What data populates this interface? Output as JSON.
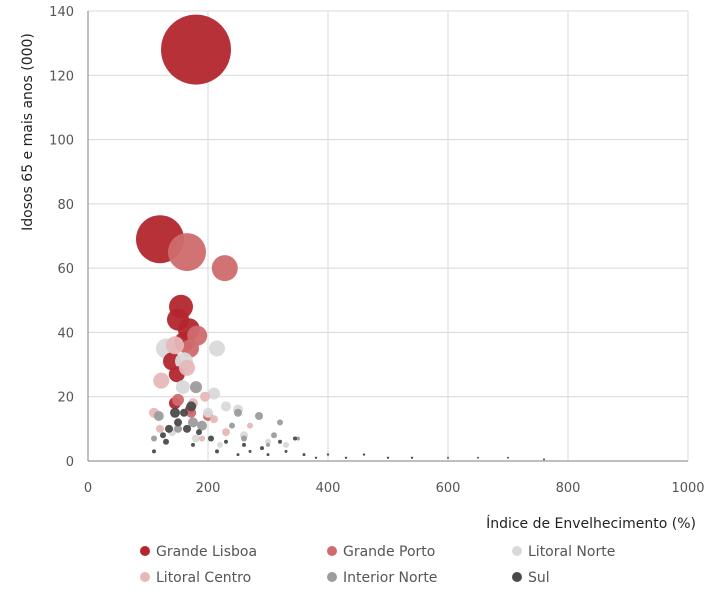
{
  "chart_data": {
    "type": "scatter",
    "subtype": "bubble",
    "xlabel": "Índice de Envelhecimento (%)",
    "ylabel": "Idosos  65 e mais  anos (000)",
    "xlim": [
      0,
      1000
    ],
    "ylim": [
      0,
      140
    ],
    "x_ticks": [
      0,
      200,
      400,
      600,
      800,
      1000
    ],
    "y_ticks": [
      0,
      20,
      40,
      60,
      80,
      100,
      120,
      140
    ],
    "grid": true,
    "legend_position": "bottom",
    "series": [
      {
        "name": "Grande Lisboa",
        "color": "#b3262e",
        "points": [
          {
            "x": 180,
            "y": 128,
            "r": 35
          },
          {
            "x": 120,
            "y": 69,
            "r": 24
          },
          {
            "x": 155,
            "y": 48,
            "r": 12
          },
          {
            "x": 150,
            "y": 44,
            "r": 11
          },
          {
            "x": 168,
            "y": 41,
            "r": 11
          },
          {
            "x": 160,
            "y": 37,
            "r": 10
          },
          {
            "x": 140,
            "y": 31,
            "r": 9
          },
          {
            "x": 148,
            "y": 27,
            "r": 8
          },
          {
            "x": 145,
            "y": 18,
            "r": 6
          },
          {
            "x": 170,
            "y": 16,
            "r": 5
          }
        ]
      },
      {
        "name": "Grande Porto",
        "color": "#cf6b6e",
        "points": [
          {
            "x": 165,
            "y": 65,
            "r": 19
          },
          {
            "x": 228,
            "y": 60,
            "r": 13
          },
          {
            "x": 182,
            "y": 39,
            "r": 10
          },
          {
            "x": 170,
            "y": 35,
            "r": 9
          },
          {
            "x": 150,
            "y": 19,
            "r": 6
          },
          {
            "x": 172,
            "y": 15,
            "r": 5
          },
          {
            "x": 200,
            "y": 14,
            "r": 5
          }
        ]
      },
      {
        "name": "Litoral Norte",
        "color": "#d9d9d9",
        "points": [
          {
            "x": 130,
            "y": 35,
            "r": 10
          },
          {
            "x": 160,
            "y": 31,
            "r": 9
          },
          {
            "x": 215,
            "y": 35,
            "r": 8
          },
          {
            "x": 158,
            "y": 23,
            "r": 7
          },
          {
            "x": 210,
            "y": 21,
            "r": 6
          },
          {
            "x": 230,
            "y": 17,
            "r": 5
          },
          {
            "x": 250,
            "y": 16,
            "r": 5
          },
          {
            "x": 200,
            "y": 15,
            "r": 5
          },
          {
            "x": 140,
            "y": 9,
            "r": 4
          },
          {
            "x": 180,
            "y": 7,
            "r": 4
          },
          {
            "x": 260,
            "y": 8,
            "r": 4
          },
          {
            "x": 300,
            "y": 6,
            "r": 3
          },
          {
            "x": 330,
            "y": 5,
            "r": 3
          },
          {
            "x": 220,
            "y": 5,
            "r": 3
          }
        ]
      },
      {
        "name": "Litoral Centro",
        "color": "#e6b8b8",
        "points": [
          {
            "x": 145,
            "y": 36,
            "r": 9
          },
          {
            "x": 165,
            "y": 29,
            "r": 8
          },
          {
            "x": 122,
            "y": 25,
            "r": 8
          },
          {
            "x": 195,
            "y": 20,
            "r": 5
          },
          {
            "x": 175,
            "y": 18,
            "r": 5
          },
          {
            "x": 110,
            "y": 15,
            "r": 5
          },
          {
            "x": 210,
            "y": 13,
            "r": 4
          },
          {
            "x": 120,
            "y": 10,
            "r": 4
          },
          {
            "x": 230,
            "y": 9,
            "r": 4
          },
          {
            "x": 270,
            "y": 11,
            "r": 3
          },
          {
            "x": 190,
            "y": 7,
            "r": 3
          }
        ]
      },
      {
        "name": "Interior Norte",
        "color": "#9c9c9c",
        "points": [
          {
            "x": 180,
            "y": 23,
            "r": 6
          },
          {
            "x": 118,
            "y": 14,
            "r": 5
          },
          {
            "x": 175,
            "y": 12,
            "r": 5
          },
          {
            "x": 190,
            "y": 11,
            "r": 5
          },
          {
            "x": 250,
            "y": 15,
            "r": 4
          },
          {
            "x": 285,
            "y": 14,
            "r": 4
          },
          {
            "x": 320,
            "y": 12,
            "r": 3
          },
          {
            "x": 240,
            "y": 11,
            "r": 3
          },
          {
            "x": 310,
            "y": 8,
            "r": 3
          },
          {
            "x": 260,
            "y": 7,
            "r": 3
          },
          {
            "x": 350,
            "y": 7,
            "r": 2
          },
          {
            "x": 300,
            "y": 5,
            "r": 2
          },
          {
            "x": 150,
            "y": 10,
            "r": 4
          },
          {
            "x": 110,
            "y": 7,
            "r": 3
          }
        ]
      },
      {
        "name": "Sul",
        "color": "#4a4a4a",
        "points": [
          {
            "x": 172,
            "y": 17,
            "r": 5
          },
          {
            "x": 145,
            "y": 15,
            "r": 5
          },
          {
            "x": 160,
            "y": 15,
            "r": 4
          },
          {
            "x": 150,
            "y": 12,
            "r": 4
          },
          {
            "x": 135,
            "y": 10,
            "r": 4
          },
          {
            "x": 165,
            "y": 10,
            "r": 4
          },
          {
            "x": 125,
            "y": 8,
            "r": 3
          },
          {
            "x": 185,
            "y": 9,
            "r": 3
          },
          {
            "x": 205,
            "y": 7,
            "r": 3
          },
          {
            "x": 130,
            "y": 6,
            "r": 3
          },
          {
            "x": 175,
            "y": 5,
            "r": 2
          },
          {
            "x": 230,
            "y": 6,
            "r": 2
          },
          {
            "x": 260,
            "y": 5,
            "r": 2
          },
          {
            "x": 290,
            "y": 4,
            "r": 2
          },
          {
            "x": 320,
            "y": 6,
            "r": 2
          },
          {
            "x": 345,
            "y": 7,
            "r": 2
          },
          {
            "x": 110,
            "y": 3,
            "r": 2
          },
          {
            "x": 215,
            "y": 3,
            "r": 2
          },
          {
            "x": 250,
            "y": 2,
            "r": 1.5
          },
          {
            "x": 270,
            "y": 3,
            "r": 1.5
          },
          {
            "x": 300,
            "y": 2,
            "r": 1.5
          },
          {
            "x": 330,
            "y": 3,
            "r": 1.5
          },
          {
            "x": 360,
            "y": 2,
            "r": 1.5
          },
          {
            "x": 380,
            "y": 1,
            "r": 1.2
          },
          {
            "x": 400,
            "y": 2,
            "r": 1.2
          },
          {
            "x": 430,
            "y": 1,
            "r": 1.2
          },
          {
            "x": 460,
            "y": 2,
            "r": 1.2
          },
          {
            "x": 500,
            "y": 1,
            "r": 1.2
          },
          {
            "x": 540,
            "y": 1,
            "r": 1.2
          },
          {
            "x": 600,
            "y": 1,
            "r": 1
          },
          {
            "x": 650,
            "y": 1,
            "r": 1
          },
          {
            "x": 700,
            "y": 1,
            "r": 1
          },
          {
            "x": 760,
            "y": 0.5,
            "r": 1
          }
        ]
      }
    ]
  }
}
